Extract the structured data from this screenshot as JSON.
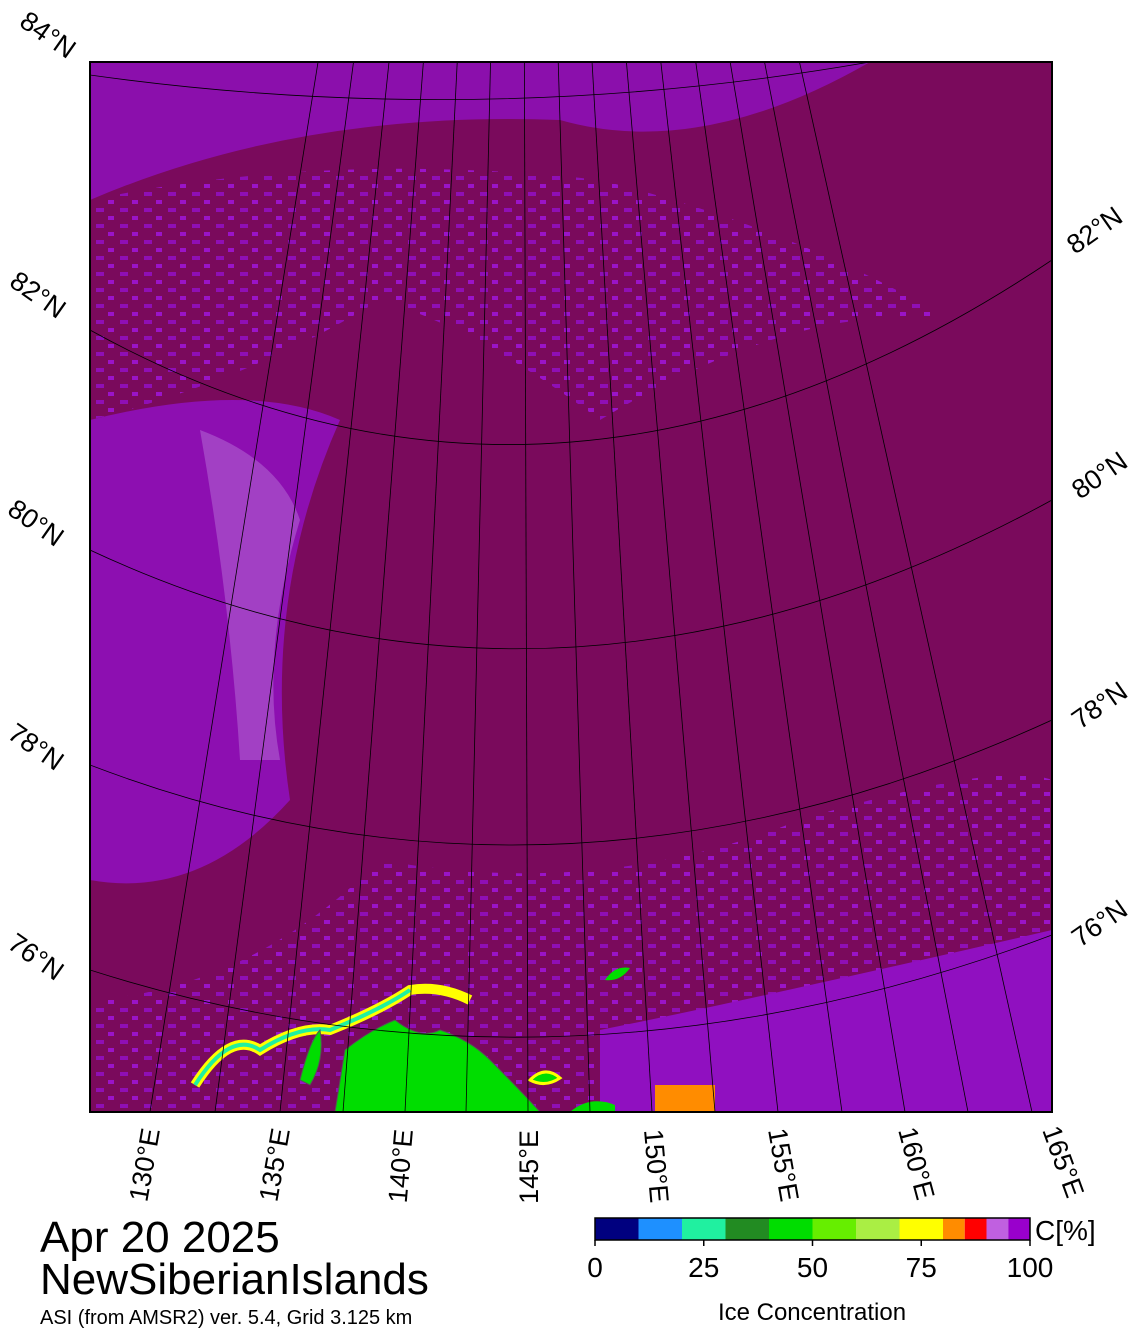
{
  "map": {
    "lat_labels_left": [
      "84°N",
      "82°N",
      "80°N",
      "78°N",
      "76°N"
    ],
    "lat_labels_right": [
      "82°N",
      "80°N",
      "78°N",
      "76°N"
    ],
    "lon_labels": [
      "130°E",
      "135°E",
      "140°E",
      "145°E",
      "150°E",
      "155°E",
      "160°E",
      "165°E"
    ]
  },
  "footer": {
    "date": "Apr 20 2025",
    "region": "NewSiberianIslands",
    "caption": "ASI (from AMSR2) ver. 5.4,  Grid 3.125 km"
  },
  "colorbar": {
    "label": "Ice Concentration",
    "unit": "C[%]",
    "bounds": [
      0,
      10,
      20,
      30,
      40,
      50,
      60,
      70,
      80,
      85,
      90,
      95,
      100
    ],
    "colors": [
      "#00007f",
      "#1e90ff",
      "#20f0a0",
      "#228b22",
      "#00dd00",
      "#66ee00",
      "#aaee44",
      "#ffff00",
      "#ff8c00",
      "#ff0000",
      "#c060e0",
      "#9900cc"
    ],
    "ticks": [
      0,
      25,
      50,
      75,
      100
    ]
  }
}
